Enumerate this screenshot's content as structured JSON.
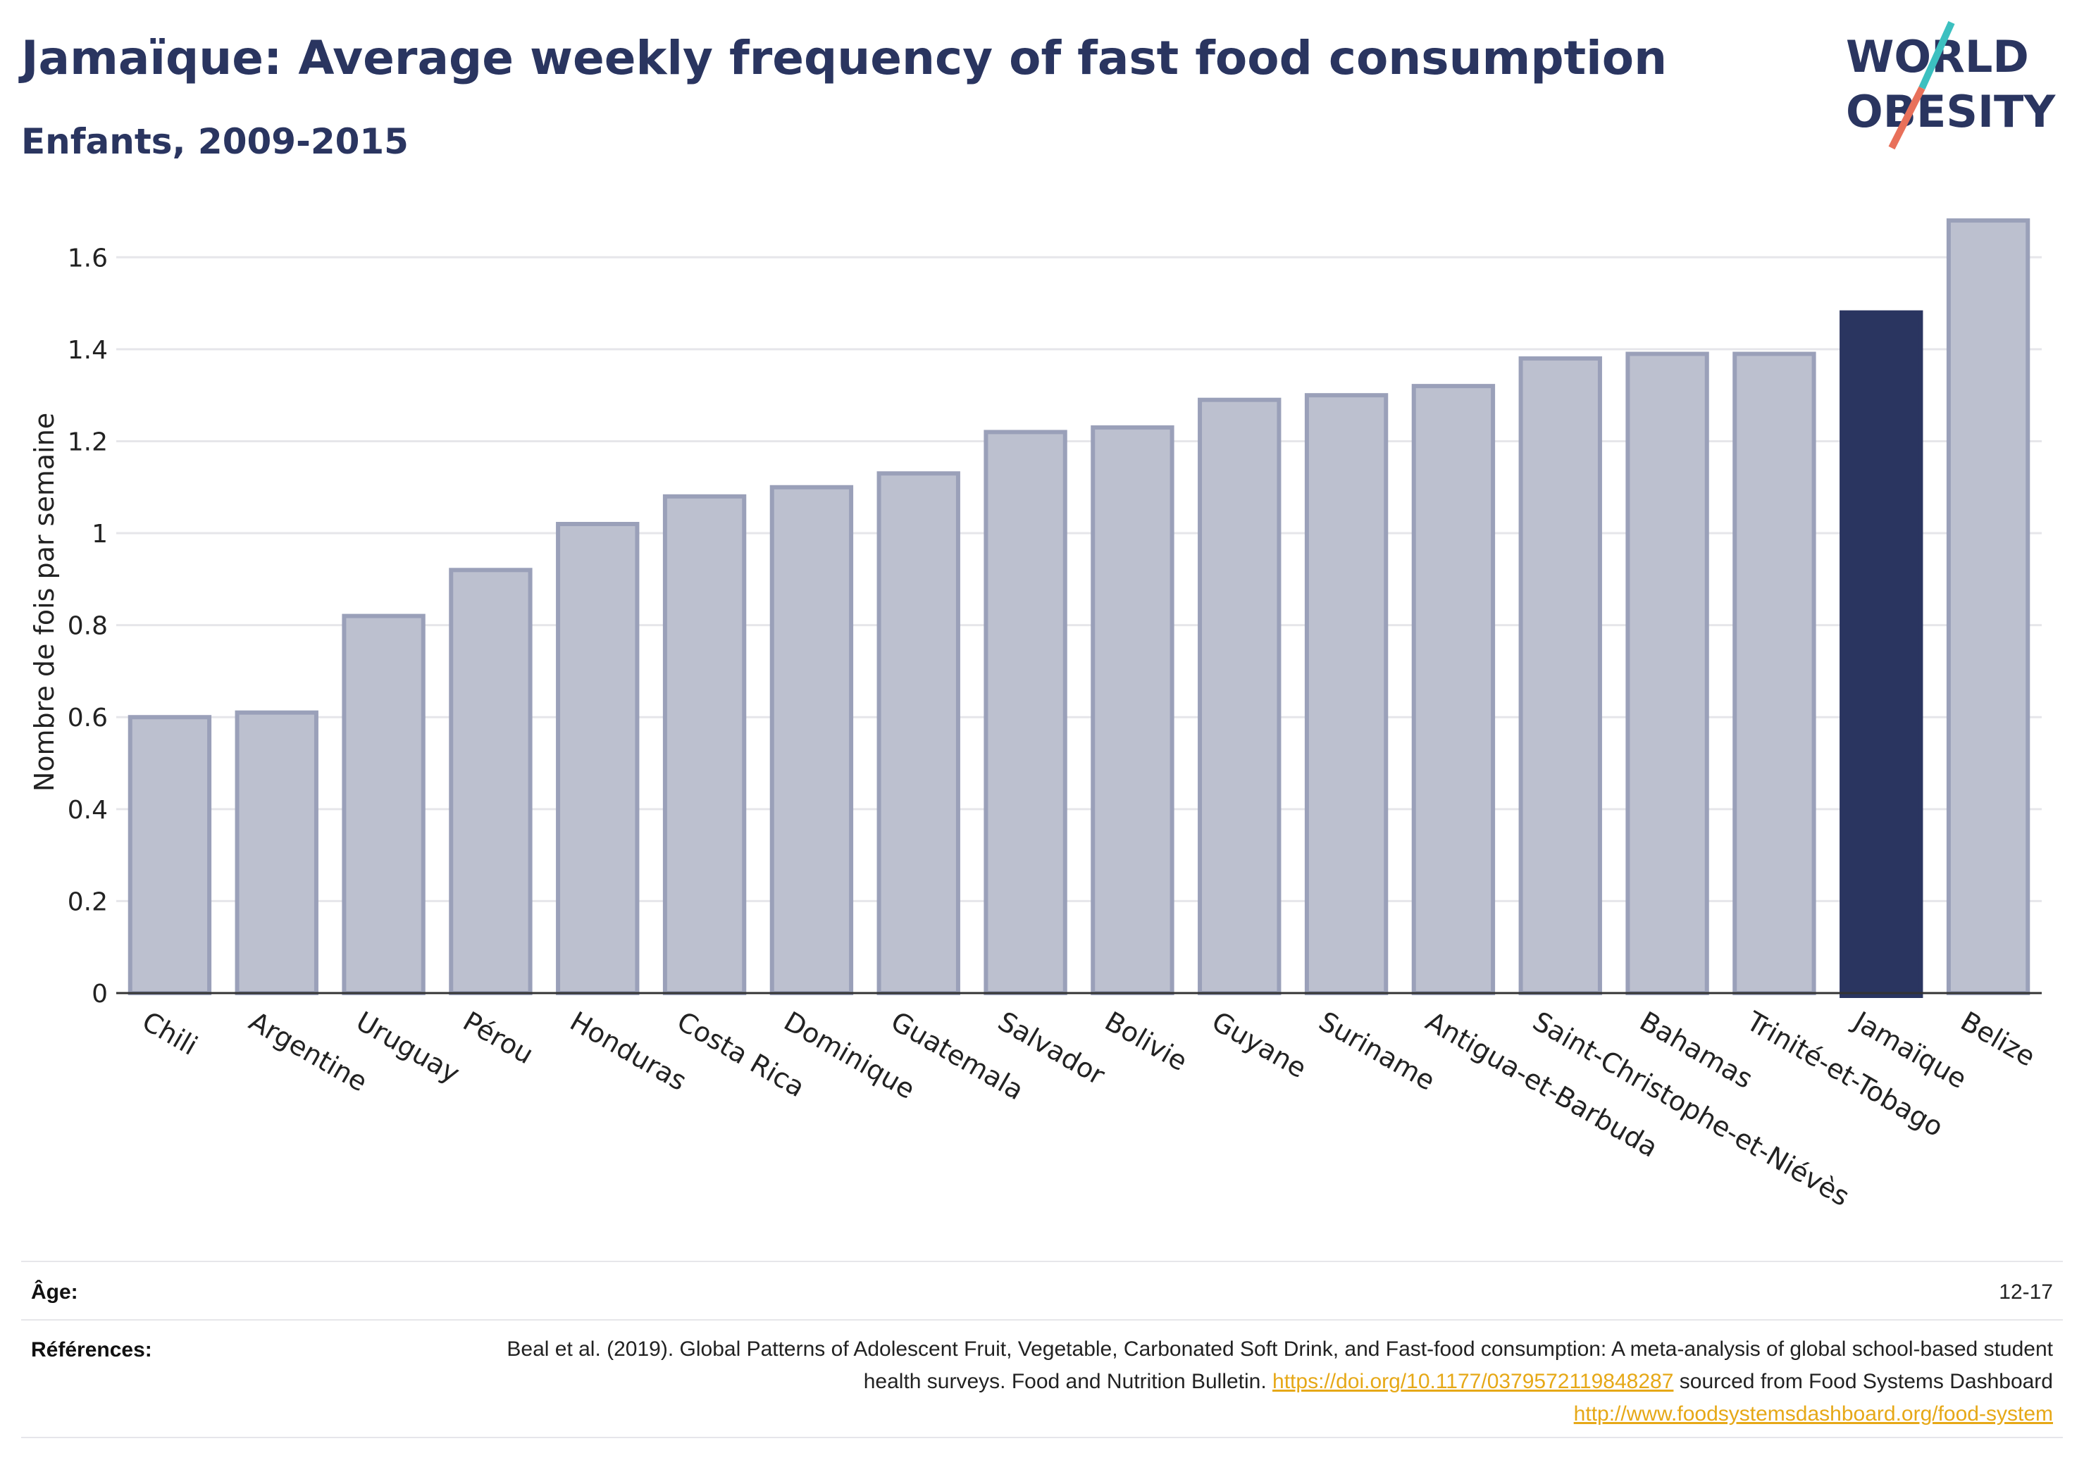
{
  "title": "Jamaïque: Average weekly frequency of fast food consumption",
  "subtitle": "Enfants, 2009-2015",
  "logo": {
    "line1": "WORLD",
    "line2": "OBESITY"
  },
  "colors": {
    "bar": "#bcc0cf",
    "bar_stroke": "#9aa0b9",
    "highlight": "#2a3560",
    "grid": "#e6e6ea",
    "axis": "#333333",
    "link": "#e6a817",
    "logo_teal": "#3cc0c0",
    "logo_coral": "#e8705a"
  },
  "chart_data": {
    "type": "bar",
    "categories": [
      "Chili",
      "Argentine",
      "Uruguay",
      "Pérou",
      "Honduras",
      "Costa Rica",
      "Dominique",
      "Guatemala",
      "Salvador",
      "Bolivie",
      "Guyane",
      "Suriname",
      "Antigua-et-Barbuda",
      "Saint-Christophe-et-Niévès",
      "Bahamas",
      "Trinité-et-Tobago",
      "Jamaïque",
      "Belize"
    ],
    "values": [
      0.6,
      0.61,
      0.82,
      0.92,
      1.02,
      1.08,
      1.1,
      1.13,
      1.22,
      1.23,
      1.29,
      1.3,
      1.32,
      1.38,
      1.39,
      1.39,
      1.48,
      1.68
    ],
    "highlight": "Jamaïque",
    "ylabel": "Nombre de fois par semaine",
    "ylim": [
      0,
      1.7
    ],
    "yticks": [
      0,
      0.2,
      0.4,
      0.6,
      0.8,
      1,
      1.2,
      1.4,
      1.6
    ],
    "ytick_labels": [
      "0",
      "0.2",
      "0.4",
      "0.6",
      "0.8",
      "1",
      "1.2",
      "1.4",
      "1.6"
    ],
    "grid": true
  },
  "meta": {
    "age_label": "Âge:",
    "age_value": "12-17",
    "refs_label": "Références:",
    "refs_text_1": "Beal et al. (2019). Global Patterns of Adolescent Fruit, Vegetable, Carbonated Soft Drink, and Fast-food consumption: A meta-analysis of global school-based student health surveys. Food and Nutrition Bulletin. ",
    "refs_link_1": "https://doi.org/10.1177/0379572119848287",
    "refs_text_2": " sourced from Food Systems Dashboard ",
    "refs_link_2": "http://www.foodsystemsdashboard.org/food-system"
  }
}
